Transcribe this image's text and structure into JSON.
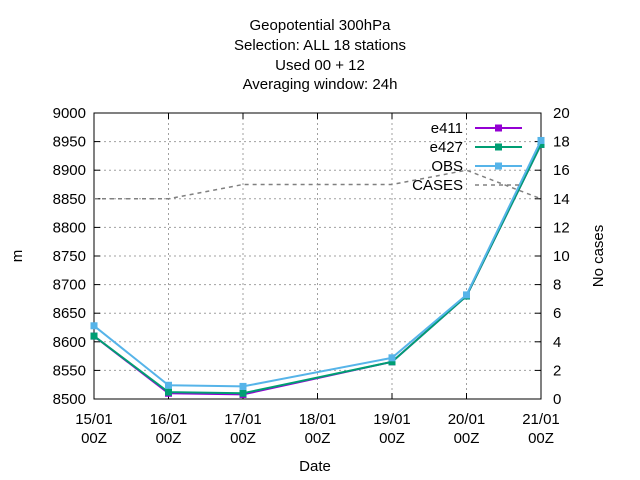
{
  "chart_data": {
    "type": "line",
    "title_lines": [
      "Geopotential 300hPa",
      "Selection: ALL     18 stations",
      "Used  00  + 12",
      "Averaging window: 24h"
    ],
    "xlabel": "Date",
    "ylabel": "m",
    "y2label": "No cases",
    "x_ticks": [
      {
        "date": "2000-01-15",
        "line1": "15/01",
        "line2": "00Z"
      },
      {
        "date": "2000-01-16",
        "line1": "16/01",
        "line2": "00Z"
      },
      {
        "date": "2000-01-17",
        "line1": "17/01",
        "line2": "00Z"
      },
      {
        "date": "2000-01-18",
        "line1": "18/01",
        "line2": "00Z"
      },
      {
        "date": "2000-01-19",
        "line1": "19/01",
        "line2": "00Z"
      },
      {
        "date": "2000-01-20",
        "line1": "20/01",
        "line2": "00Z"
      },
      {
        "date": "2000-01-21",
        "line1": "21/01",
        "line2": "00Z"
      }
    ],
    "xlim": [
      "2000-01-15",
      "2000-01-21"
    ],
    "ylim": [
      8500,
      9000
    ],
    "y_ticks": [
      8500,
      8550,
      8600,
      8650,
      8700,
      8750,
      8800,
      8850,
      8900,
      8950,
      9000
    ],
    "y2lim": [
      0,
      20
    ],
    "y2_ticks": [
      0,
      2,
      4,
      6,
      8,
      10,
      12,
      14,
      16,
      18,
      20
    ],
    "grid": true,
    "legend_position": "top-right",
    "series": [
      {
        "name": "e411",
        "color": "#9400d3",
        "axis": "y",
        "style": "solid",
        "marker": "square",
        "x": [
          "2000-01-15",
          "2000-01-16",
          "2000-01-17",
          "2000-01-19",
          "2000-01-20",
          "2000-01-21"
        ],
        "values": [
          8610,
          8510,
          8508,
          8565,
          8680,
          8945
        ]
      },
      {
        "name": "e427",
        "color": "#009e73",
        "axis": "y",
        "style": "solid",
        "marker": "square",
        "x": [
          "2000-01-15",
          "2000-01-16",
          "2000-01-17",
          "2000-01-19",
          "2000-01-20",
          "2000-01-21"
        ],
        "values": [
          8610,
          8512,
          8510,
          8565,
          8680,
          8945
        ]
      },
      {
        "name": "OBS",
        "color": "#56b4e9",
        "axis": "y",
        "style": "solid",
        "marker": "square",
        "x": [
          "2000-01-15",
          "2000-01-16",
          "2000-01-17",
          "2000-01-19",
          "2000-01-20",
          "2000-01-21"
        ],
        "values": [
          8628,
          8524,
          8522,
          8572,
          8682,
          8952
        ]
      },
      {
        "name": "CASES",
        "color": "#808080",
        "axis": "y2",
        "style": "dashed",
        "marker": "none",
        "x": [
          "2000-01-15",
          "2000-01-16",
          "2000-01-17",
          "2000-01-18",
          "2000-01-19",
          "2000-01-20",
          "2000-01-21"
        ],
        "values": [
          14,
          14,
          15,
          15,
          15,
          16,
          14
        ]
      }
    ]
  }
}
